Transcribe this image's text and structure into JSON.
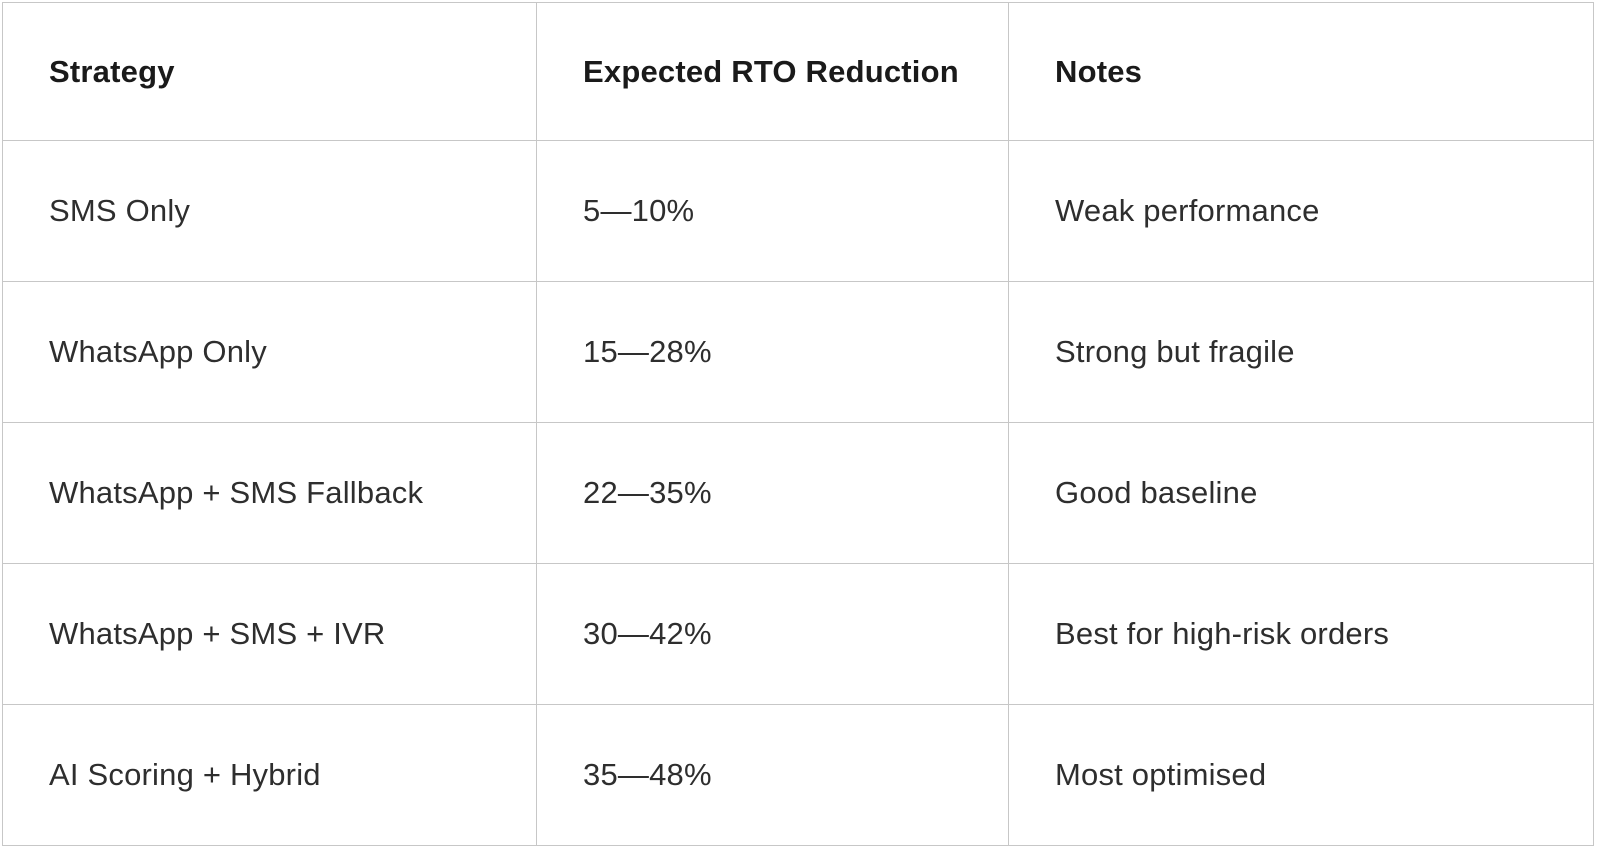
{
  "table": {
    "columns": [
      {
        "key": "strategy",
        "label": "Strategy"
      },
      {
        "key": "rto",
        "label": "Expected RTO Reduction"
      },
      {
        "key": "notes",
        "label": "Notes"
      }
    ],
    "rows": [
      {
        "strategy": "SMS Only",
        "rto": "5—10%",
        "notes": "Weak performance"
      },
      {
        "strategy": "WhatsApp Only",
        "rto": "15—28%",
        "notes": "Strong but fragile"
      },
      {
        "strategy": "WhatsApp + SMS Fallback",
        "rto": "22—35%",
        "notes": "Good baseline"
      },
      {
        "strategy": "WhatsApp + SMS + IVR",
        "rto": "30—42%",
        "notes": "Best for high-risk orders"
      },
      {
        "strategy": "AI Scoring + Hybrid",
        "rto": "35—48%",
        "notes": "Most optimised"
      }
    ]
  },
  "colors": {
    "background": "#ffffff",
    "grid_line": "#c7c7c7",
    "header_text": "#1a1a1a",
    "body_text": "#2e2e2e"
  }
}
